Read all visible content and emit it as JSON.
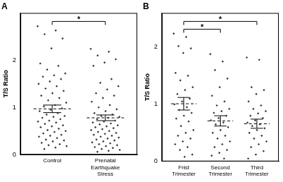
{
  "chart_data": [
    {
      "type": "scatter",
      "title": "A",
      "y_label": "T/S Ratio",
      "categories": [
        "Control",
        "Prenatal Earthquake Stress"
      ],
      "values": [
        [
          2.72,
          2.63,
          2.55,
          2.46,
          2.25,
          1.93,
          1.88,
          1.8,
          1.72,
          1.68,
          1.65,
          1.6,
          1.55,
          1.5,
          1.45,
          1.4,
          1.35,
          1.3,
          1.25,
          1.2,
          1.15,
          1.1,
          1.05,
          1.02,
          0.98,
          0.95,
          0.92,
          0.88,
          0.85,
          0.82,
          0.8,
          0.78,
          0.75,
          0.72,
          0.7,
          0.68,
          0.65,
          0.62,
          0.6,
          0.58,
          0.55,
          0.52,
          0.5,
          0.48,
          0.45,
          0.42,
          0.4,
          0.38,
          0.35,
          0.32,
          0.3,
          0.28,
          0.25,
          0.22,
          0.2,
          0.18,
          0.15,
          0.12
        ],
        [
          2.24,
          2.18,
          2.1,
          2.02,
          1.95,
          1.88,
          1.6,
          1.52,
          1.45,
          1.38,
          1.3,
          1.25,
          1.2,
          1.12,
          1.05,
          1.0,
          0.96,
          0.92,
          0.88,
          0.85,
          0.82,
          0.8,
          0.78,
          0.75,
          0.72,
          0.7,
          0.68,
          0.66,
          0.64,
          0.62,
          0.6,
          0.58,
          0.56,
          0.54,
          0.52,
          0.5,
          0.48,
          0.46,
          0.44,
          0.42,
          0.4,
          0.38,
          0.36,
          0.34,
          0.32,
          0.3,
          0.28,
          0.26,
          0.24,
          0.22,
          0.2,
          0.18,
          0.16,
          0.14,
          0.12,
          0.1,
          0.08,
          0.06
        ]
      ],
      "means": [
        0.97,
        0.78
      ],
      "sem": [
        0.08,
        0.06
      ],
      "ylim": [
        0,
        3.0
      ],
      "yticks": [
        0,
        1,
        2
      ],
      "color": "#333333",
      "marker": "diamond",
      "grid": false,
      "annotations": [
        {
          "from": "Control",
          "to": "Prenatal Earthquake Stress",
          "text": "*"
        }
      ]
    },
    {
      "type": "scatter",
      "title": "B",
      "y_label": "T/S Ratio",
      "categories": [
        "Frist Trimester",
        "Second Trimester",
        "Third Trimester"
      ],
      "values": [
        [
          2.24,
          2.18,
          2.02,
          1.98,
          1.9,
          1.55,
          1.5,
          1.42,
          1.3,
          1.25,
          1.18,
          1.1,
          1.05,
          1.0,
          0.95,
          0.9,
          0.85,
          0.8,
          0.75,
          0.7,
          0.62,
          0.55,
          0.5,
          0.45,
          0.4,
          0.35,
          0.3,
          0.25,
          0.2,
          0.12,
          0.08
        ],
        [
          1.88,
          1.75,
          1.6,
          1.45,
          1.3,
          1.15,
          1.05,
          0.98,
          0.92,
          0.88,
          0.85,
          0.8,
          0.76,
          0.72,
          0.68,
          0.65,
          0.6,
          0.55,
          0.5,
          0.45,
          0.4,
          0.35,
          0.3,
          0.25,
          0.2,
          0.15,
          0.1,
          0.05
        ],
        [
          1.82,
          1.78,
          1.3,
          1.25,
          1.18,
          1.05,
          0.98,
          0.92,
          0.88,
          0.84,
          0.8,
          0.76,
          0.72,
          0.68,
          0.65,
          0.62,
          0.58,
          0.55,
          0.5,
          0.45,
          0.4,
          0.35,
          0.3,
          0.25,
          0.18,
          0.12,
          0.05
        ]
      ],
      "means": [
        1.01,
        0.71,
        0.66
      ],
      "sem": [
        0.11,
        0.09,
        0.08
      ],
      "ylim": [
        0,
        2.6
      ],
      "yticks": [
        0,
        1,
        2
      ],
      "color": "#333333",
      "marker": "diamond",
      "grid": false,
      "annotations": [
        {
          "from": "Frist Trimester",
          "to": "Second Trimester",
          "text": "*"
        },
        {
          "from": "Frist Trimester",
          "to": "Third Trimester",
          "text": "*"
        }
      ]
    }
  ]
}
